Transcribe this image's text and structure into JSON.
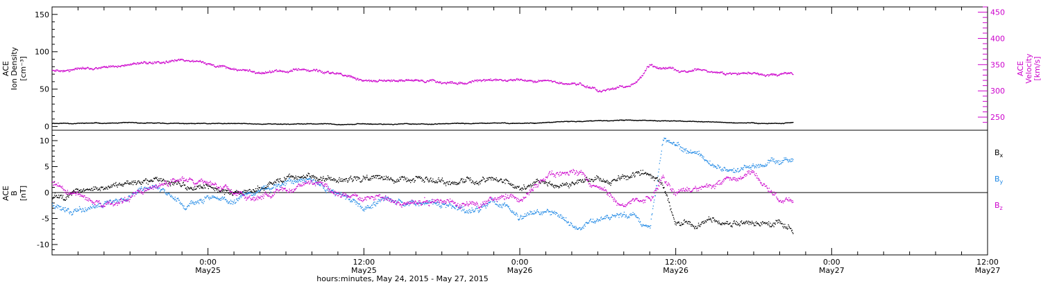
{
  "colors": {
    "density": "#000000",
    "velocity": "#cc00cc",
    "bx": "#000000",
    "by": "#1e88e5",
    "bz": "#cc00cc",
    "axis": "#000000"
  },
  "chart_data": [
    {
      "type": "scatter",
      "panel": "plasma",
      "ylabel_left": [
        "ACE",
        "Ion Density",
        "[cm⁻³]"
      ],
      "ylabel_right": [
        "ACE",
        "Velocity",
        "[km/s]"
      ],
      "y_left_ticks": [
        "0",
        "50",
        "100",
        "150"
      ],
      "y_left_range": [
        -5,
        160
      ],
      "y_right_ticks": [
        "250",
        "300",
        "350",
        "400",
        "450"
      ],
      "y_right_range": [
        225,
        460
      ],
      "x_range_hours": [
        0,
        72
      ],
      "data_end_hour": 57,
      "series": [
        {
          "name": "Ion Density",
          "axis": "left",
          "x": [
            0,
            6,
            12,
            18,
            24,
            30,
            36,
            42,
            46,
            50,
            54,
            56,
            57
          ],
          "y": [
            5,
            5,
            4,
            4,
            4,
            4,
            5,
            8,
            9,
            7,
            5,
            5,
            6
          ]
        },
        {
          "name": "Velocity",
          "axis": "right",
          "x": [
            0,
            2,
            4,
            6,
            8,
            10,
            11,
            12,
            14,
            16,
            18,
            19,
            20,
            22,
            24,
            26,
            28,
            30,
            32,
            34,
            36,
            38,
            40,
            42,
            44,
            45,
            46,
            47,
            48,
            50,
            52,
            54,
            56,
            57
          ],
          "y": [
            340,
            344,
            346,
            350,
            356,
            360,
            358,
            352,
            342,
            336,
            338,
            342,
            339,
            334,
            322,
            318,
            318,
            316,
            318,
            320,
            320,
            318,
            314,
            306,
            306,
            318,
            350,
            344,
            340,
            338,
            334,
            332,
            332,
            332
          ]
        }
      ]
    },
    {
      "type": "scatter",
      "panel": "magnetic",
      "ylabel_left": [
        "ACE",
        "B",
        "[nT]"
      ],
      "y_left_ticks": [
        "-10",
        "-5",
        "0",
        "5",
        "10"
      ],
      "y_left_range": [
        -12,
        12
      ],
      "x_range_hours": [
        0,
        72
      ],
      "data_end_hour": 57,
      "x_tick_labels": [
        {
          "hour": 12,
          "time": "0:00",
          "date": "May25"
        },
        {
          "hour": 24,
          "time": "12:00",
          "date": "May25"
        },
        {
          "hour": 36,
          "time": "0:00",
          "date": "May26"
        },
        {
          "hour": 48,
          "time": "12:00",
          "date": "May26"
        },
        {
          "hour": 60,
          "time": "0:00",
          "date": "May27"
        },
        {
          "hour": 72,
          "time": "12:00",
          "date": "May27"
        }
      ],
      "xlabel": "hours:minutes, May 24, 2015 - May 27, 2015",
      "series": [
        {
          "name": "Bx",
          "label_main": "B",
          "label_sub": "x",
          "x": [
            0,
            3,
            6,
            8,
            10,
            12,
            14,
            16,
            18,
            20,
            22,
            24,
            26,
            28,
            30,
            32,
            34,
            36,
            38,
            40,
            42,
            44,
            46,
            47,
            48,
            50,
            52,
            54,
            56,
            57
          ],
          "y": [
            -1,
            1,
            2,
            3,
            2,
            1,
            0,
            1,
            3,
            3,
            3,
            3,
            3,
            3,
            2,
            3,
            3,
            1,
            2,
            2,
            3,
            3,
            4,
            2,
            -5,
            -6,
            -6,
            -6,
            -5,
            -7
          ]
        },
        {
          "name": "By",
          "label_main": "B",
          "label_sub": "y",
          "x": [
            0,
            2,
            4,
            6,
            8,
            10,
            12,
            14,
            16,
            18,
            20,
            22,
            24,
            26,
            28,
            30,
            32,
            34,
            36,
            38,
            40,
            42,
            44,
            46,
            47,
            48,
            50,
            52,
            54,
            56,
            57
          ],
          "y": [
            -2,
            -3,
            -1,
            0,
            1,
            -2,
            -1,
            -2,
            0,
            1,
            2,
            -1,
            -2,
            -1,
            -1,
            -2,
            -3,
            -2,
            -4,
            -3,
            -6,
            -5,
            -4,
            -7,
            10,
            9,
            7,
            5,
            5,
            6,
            6
          ]
        },
        {
          "name": "Bz",
          "label_main": "B",
          "label_sub": "z",
          "x": [
            0,
            2,
            4,
            6,
            8,
            10,
            12,
            14,
            16,
            18,
            20,
            22,
            24,
            26,
            28,
            30,
            32,
            34,
            36,
            38,
            40,
            42,
            44,
            46,
            47,
            48,
            50,
            52,
            54,
            56,
            57
          ],
          "y": [
            2,
            0,
            -3,
            -1,
            2,
            3,
            2,
            0,
            -1,
            1,
            2,
            0,
            -1,
            -1,
            -2,
            -1,
            -2,
            -1,
            -1,
            3,
            4,
            1,
            -3,
            -2,
            3,
            0,
            2,
            3,
            4,
            -2,
            -1
          ]
        }
      ]
    }
  ]
}
